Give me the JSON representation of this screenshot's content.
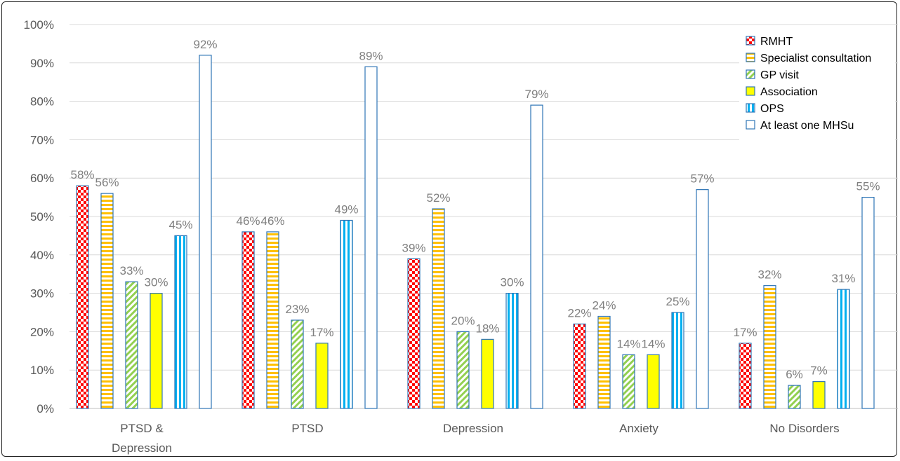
{
  "chart_data": {
    "type": "bar",
    "categories": [
      "PTSD & Depression",
      "PTSD",
      "Depression",
      "Anxiety",
      "No Disorders"
    ],
    "series": [
      {
        "name": "RMHT",
        "values": [
          58,
          46,
          39,
          22,
          17
        ],
        "pattern": "checker",
        "color": "#ff0000"
      },
      {
        "name": "Specialist consultation",
        "values": [
          56,
          46,
          52,
          24,
          32
        ],
        "pattern": "hstripe",
        "color": "#ffc000"
      },
      {
        "name": "GP visit",
        "values": [
          33,
          23,
          20,
          14,
          6
        ],
        "pattern": "diag",
        "color": "#92d050"
      },
      {
        "name": "Association",
        "values": [
          30,
          17,
          18,
          14,
          7
        ],
        "pattern": "solid",
        "color": "#ffff00"
      },
      {
        "name": "OPS",
        "values": [
          45,
          49,
          30,
          25,
          31
        ],
        "pattern": "vstripe",
        "color": "#00b0f0"
      },
      {
        "name": "At least one MHSu",
        "values": [
          92,
          89,
          79,
          57,
          55
        ],
        "pattern": "none",
        "color": "#ffffff"
      }
    ],
    "value_labels": [
      [
        "58%",
        "46%",
        "39%",
        "22%",
        "17%"
      ],
      [
        "56%",
        "46%",
        "52%",
        "24%",
        "32%"
      ],
      [
        "33%",
        "23%",
        "20%",
        "14%",
        "6%"
      ],
      [
        "30%",
        "17%",
        "18%",
        "14%",
        "7%"
      ],
      [
        "45%",
        "49%",
        "30%",
        "25%",
        "31%"
      ],
      [
        "92%",
        "89%",
        "79%",
        "57%",
        "55%"
      ]
    ],
    "y_ticks": [
      "0%",
      "10%",
      "20%",
      "30%",
      "40%",
      "50%",
      "60%",
      "70%",
      "80%",
      "90%",
      "100%"
    ],
    "ylim": [
      0,
      100
    ],
    "grid": true,
    "legend_position": "top-right",
    "bar_outline_color": "#2e75b6",
    "title": "",
    "xlabel": "",
    "ylabel": ""
  }
}
